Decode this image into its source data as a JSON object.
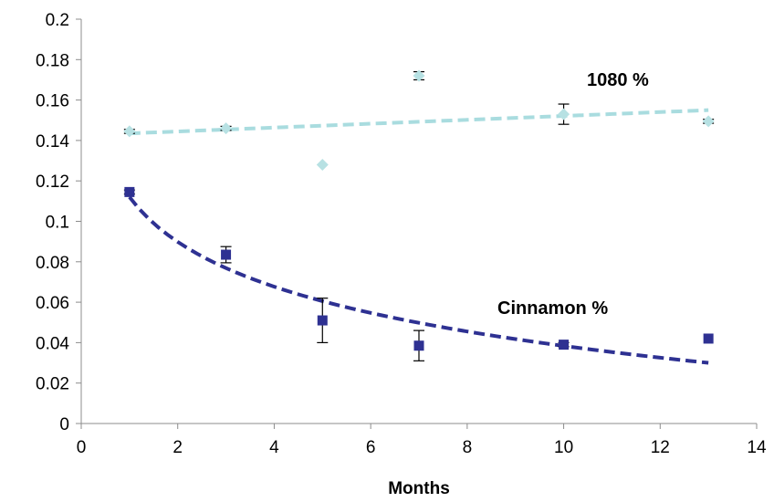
{
  "chart_data": {
    "type": "scatter",
    "title": "",
    "xlabel": "Months",
    "ylabel": "",
    "xlim": [
      0,
      14
    ],
    "ylim": [
      0,
      0.2
    ],
    "x_ticks": [
      "0",
      "2",
      "4",
      "6",
      "8",
      "10",
      "12",
      "14"
    ],
    "y_ticks": [
      "0",
      "0.02",
      "0.04",
      "0.06",
      "0.08",
      "0.1",
      "0.12",
      "0.14",
      "0.16",
      "0.18",
      "0.2"
    ],
    "grid": false,
    "legend": "none",
    "series": [
      {
        "name": "1080 %",
        "marker": "diamond",
        "color": "#b7e1e3",
        "x": [
          1,
          3,
          5,
          7,
          10,
          13
        ],
        "y": [
          0.1445,
          0.146,
          0.128,
          0.172,
          0.153,
          0.1495
        ],
        "error": [
          0.001,
          0.001,
          0,
          0.002,
          0.005,
          0.001
        ],
        "trendline": {
          "type": "linear",
          "color": "#a9dcdf",
          "x_range": [
            1,
            13
          ],
          "y_start": 0.1435,
          "y_end": 0.155
        }
      },
      {
        "name": "Cinnamon %",
        "marker": "square",
        "color": "#2e3192",
        "x": [
          1,
          3,
          5,
          7,
          10,
          13
        ],
        "y": [
          0.1145,
          0.0835,
          0.051,
          0.0385,
          0.039,
          0.042
        ],
        "error": [
          0.001,
          0.004,
          0.011,
          0.0075,
          0.001,
          0
        ],
        "trendline": {
          "type": "logarithmic",
          "color": "#2e3192",
          "x_range": [
            1,
            13
          ],
          "y_start": 0.112,
          "y_end": 0.03
        }
      }
    ]
  }
}
